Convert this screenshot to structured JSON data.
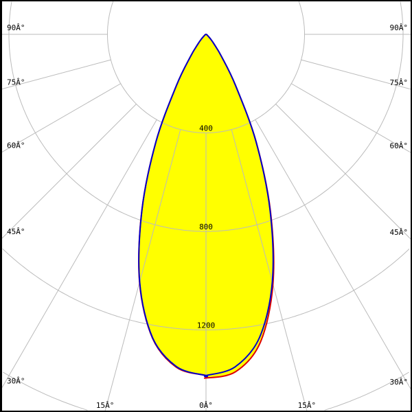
{
  "chart_data": {
    "type": "polar",
    "title": "",
    "radial_ticks": [
      400,
      800,
      1200,
      1600,
      2000,
      2400
    ],
    "radial_tick_labels": [
      "400",
      "800",
      "1200"
    ],
    "angle_step_deg": 15,
    "angle_labels": {
      "left": [
        "90Â°",
        "75Â°",
        "60Â°",
        "45Â°",
        "30Â°"
      ],
      "bottom": [
        "15Â°",
        "0Â°",
        "15Â°"
      ],
      "right": [
        "90Â°",
        "75Â°",
        "60Â°",
        "45Â°",
        "30Â°"
      ]
    },
    "grid": true,
    "fill_color": "#ffff00",
    "angles_deg": [
      0,
      5,
      10,
      15,
      20,
      25,
      30,
      35,
      40,
      45,
      50,
      60,
      70,
      80,
      90
    ],
    "series": [
      {
        "color": "#0000cc",
        "values": [
          1385,
          1355,
          1250,
          1040,
          760,
          480,
          240,
          110,
          50,
          25,
          12,
          5,
          2,
          1,
          0
        ],
        "values_right": [
          1385,
          1355,
          1250,
          1040,
          760,
          480,
          240,
          110,
          50,
          25,
          12,
          5,
          2,
          1,
          0
        ]
      },
      {
        "color": "#dd0000",
        "values": [
          1385,
          1358,
          1252,
          1042,
          762,
          480,
          240,
          110,
          50,
          25,
          12,
          5,
          2,
          1,
          0
        ],
        "values_right": [
          1395,
          1375,
          1270,
          1050,
          765,
          482,
          240,
          110,
          50,
          25,
          12,
          5,
          2,
          1,
          0
        ]
      }
    ]
  }
}
